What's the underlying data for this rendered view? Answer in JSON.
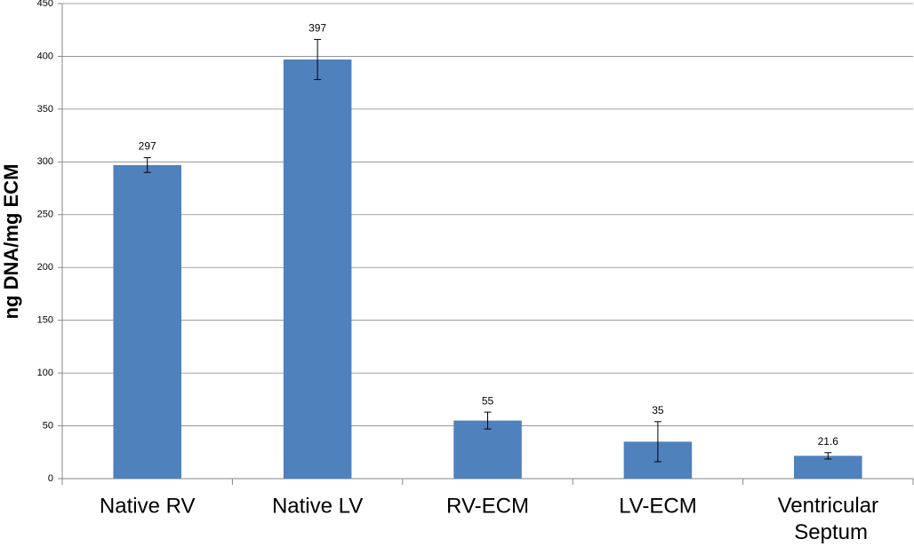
{
  "chart_data": {
    "type": "bar",
    "y_label": "ng DNA/mg ECM",
    "categories": [
      "Native RV",
      "Native LV",
      "RV-ECM",
      "LV-ECM",
      "Ventricular Septum"
    ],
    "values": [
      297,
      397,
      55,
      35,
      21.6
    ],
    "errors": [
      7,
      19,
      8,
      19,
      3
    ],
    "color": "#4f81bd",
    "ylim": [
      0,
      450
    ],
    "yticks": [
      0,
      50,
      100,
      150,
      200,
      250,
      300,
      350,
      400,
      450
    ],
    "grid": true
  }
}
